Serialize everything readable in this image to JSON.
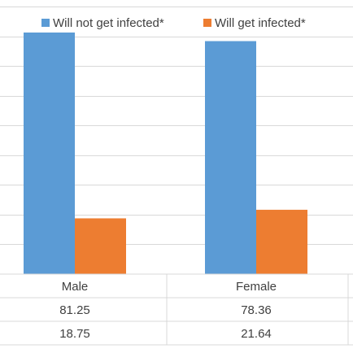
{
  "chart_data": {
    "type": "bar",
    "title": "",
    "xlabel": "",
    "ylabel": "",
    "categories": [
      "Male",
      "Female"
    ],
    "series": [
      {
        "name": "Will not get infected*",
        "values": [
          81.25,
          78.36
        ],
        "color": "#5b9bd5"
      },
      {
        "name": "Will get infected*",
        "values": [
          18.75,
          21.64
        ],
        "color": "#ed7d31"
      }
    ],
    "ylim": [
      0,
      90
    ],
    "grid": true,
    "legend": "top",
    "data_table": true
  }
}
